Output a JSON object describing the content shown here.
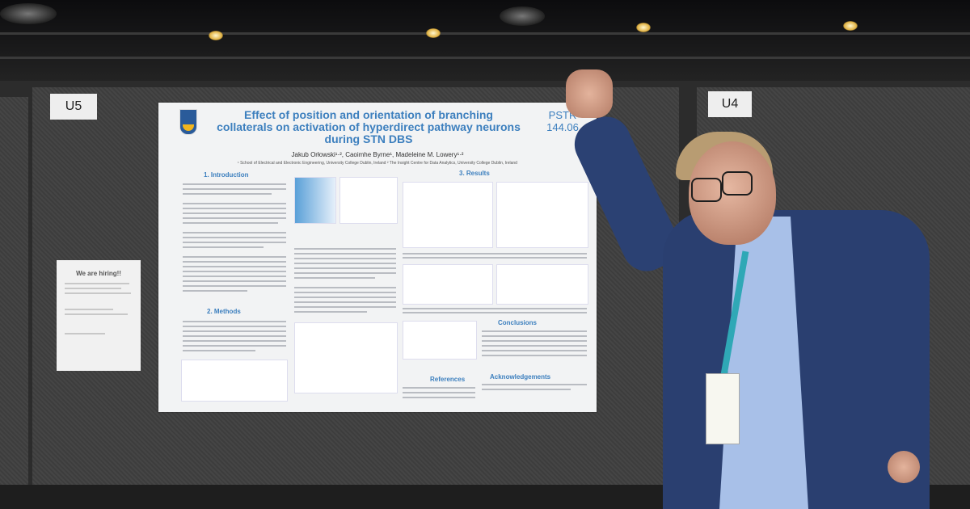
{
  "booth": {
    "left_tag": "U5",
    "right_tag": "U4"
  },
  "flyer": {
    "title": "We are hiring!!"
  },
  "poster": {
    "title": "Effect of position and orientation of branching collaterals on activation of hyperdirect pathway neurons during STN DBS",
    "code_line1": "PSTR",
    "code_line2": "144.06",
    "authors": "Jakub Orłowski¹·², Caoimhe Byrne¹, Madeleine M. Lowery¹·²",
    "affiliations": "¹ School of Electrical and Electronic Engineering, University College Dublin, Ireland     ² The Insight Centre for Data Analytics, University College Dublin, Ireland",
    "sections": {
      "introduction": "1. Introduction",
      "methods": "2. Methods",
      "results": "3. Results",
      "conclusions": "Conclusions",
      "acknowledgements": "Acknowledgements",
      "references": "References"
    }
  },
  "colors": {
    "poster_accent": "#3c7fbe",
    "jacket": "#2a3f70",
    "lanyard": "#2fa8b6"
  }
}
